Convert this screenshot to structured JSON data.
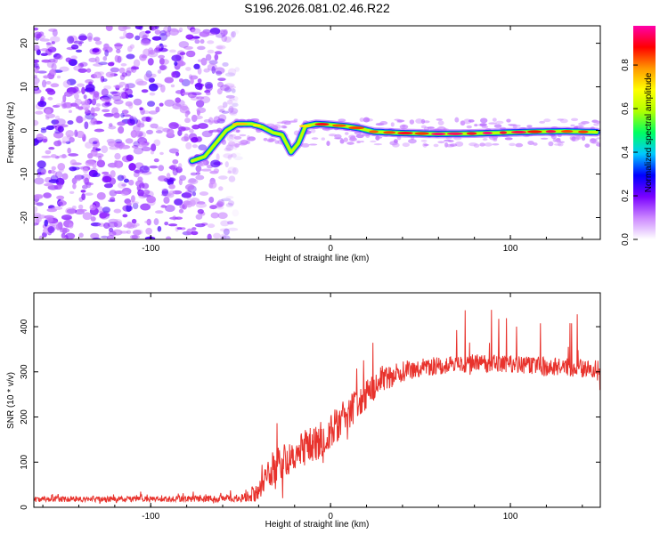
{
  "title": "S196.2026.081.02.46.R22",
  "colors": {
    "snr_line": "#e8322c",
    "axis": "#000000",
    "background": "#ffffff"
  },
  "chart_data": [
    {
      "type": "heatmap",
      "title": "S196.2026.081.02.46.R22",
      "xlabel": "Height of straight line (km)",
      "ylabel": "Frequency (Hz)",
      "xlim": [
        -165,
        150
      ],
      "ylim": [
        -25,
        24
      ],
      "x_ticks": [
        -100,
        0,
        100
      ],
      "x_tick_labels": [
        "-100",
        "0",
        "100"
      ],
      "y_ticks": [
        -20,
        -10,
        0,
        10,
        20
      ],
      "y_tick_labels": [
        "-20",
        "-10",
        "0",
        "10",
        "20"
      ],
      "noise_region_x": [
        -165,
        -55
      ],
      "ridge_points": [
        {
          "x": -77,
          "y": -7,
          "a": 0.55
        },
        {
          "x": -70,
          "y": -6,
          "a": 0.5
        },
        {
          "x": -64,
          "y": -3,
          "a": 0.5
        },
        {
          "x": -58,
          "y": 0,
          "a": 0.55
        },
        {
          "x": -52,
          "y": 1.5,
          "a": 0.7
        },
        {
          "x": -44,
          "y": 1.5,
          "a": 0.8
        },
        {
          "x": -38,
          "y": 0.8,
          "a": 0.6
        },
        {
          "x": -32,
          "y": -0.5,
          "a": 0.55
        },
        {
          "x": -27,
          "y": -1,
          "a": 0.6
        },
        {
          "x": -22,
          "y": -5,
          "a": 0.5
        },
        {
          "x": -18,
          "y": -3,
          "a": 0.5
        },
        {
          "x": -14,
          "y": 1,
          "a": 0.75
        },
        {
          "x": -8,
          "y": 1.5,
          "a": 0.85
        },
        {
          "x": 0,
          "y": 1.3,
          "a": 0.9
        },
        {
          "x": 8,
          "y": 1,
          "a": 0.9
        },
        {
          "x": 16,
          "y": 0.5,
          "a": 0.85
        },
        {
          "x": 24,
          "y": -0.3,
          "a": 0.9
        },
        {
          "x": 40,
          "y": -0.6,
          "a": 0.9
        },
        {
          "x": 60,
          "y": -0.8,
          "a": 0.95
        },
        {
          "x": 80,
          "y": -0.7,
          "a": 0.95
        },
        {
          "x": 96,
          "y": -0.5,
          "a": 0.9
        },
        {
          "x": 112,
          "y": -0.3,
          "a": 0.95
        },
        {
          "x": 130,
          "y": -0.2,
          "a": 0.9
        },
        {
          "x": 148,
          "y": -0.4,
          "a": 0.85
        }
      ],
      "colorbar": {
        "label": "Normalized spectral amplitude",
        "range": [
          0,
          0.98
        ],
        "ticks": [
          0.0,
          0.2,
          0.4,
          0.6,
          0.8
        ],
        "tick_labels": [
          "0.0",
          "0.2",
          "0.4",
          "0.6",
          "0.8"
        ],
        "colormap": [
          "#ffffff",
          "#cc88ff",
          "#7a00ff",
          "#0000ff",
          "#00c8ff",
          "#00ff60",
          "#b0ff00",
          "#ffff00",
          "#ff9900",
          "#ff0000",
          "#ff00aa"
        ]
      }
    },
    {
      "type": "line",
      "title": "",
      "xlabel": "Height of straight line (km)",
      "ylabel": "SNR (10 * v/v)",
      "xlim": [
        -165,
        150
      ],
      "ylim": [
        0,
        475
      ],
      "x_ticks": [
        -100,
        0,
        100
      ],
      "x_tick_labels": [
        "-100",
        "0",
        "100"
      ],
      "y_ticks": [
        0,
        100,
        200,
        300,
        400
      ],
      "y_tick_labels": [
        "0",
        "100",
        "200",
        "300",
        "400"
      ],
      "series": [
        {
          "name": "SNR",
          "envelope": {
            "x": [
              -165,
              -100,
              -50,
              -42,
              -35,
              -25,
              -15,
              -5,
              5,
              15,
              25,
              35,
              50,
              80,
              110,
              150
            ],
            "baseline": [
              18,
              18,
              20,
              30,
              70,
              110,
              130,
              150,
              190,
              230,
              270,
              295,
              310,
              320,
              315,
              305
            ],
            "noise": [
              6,
              6,
              8,
              20,
              30,
              40,
              40,
              40,
              40,
              35,
              30,
              25,
              20,
              20,
              20,
              20
            ],
            "spike_height": [
              12,
              12,
              15,
              40,
              60,
              80,
              100,
              60,
              50,
              60,
              90,
              110,
              120,
              120,
              120,
              120
            ]
          }
        }
      ]
    }
  ]
}
